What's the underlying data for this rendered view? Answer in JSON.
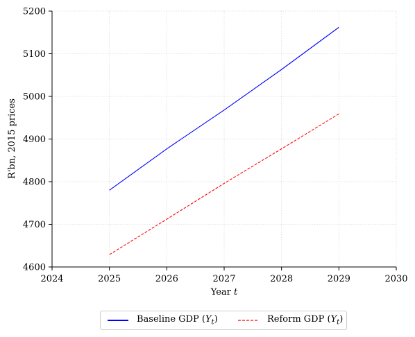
{
  "chart_data": {
    "type": "line",
    "xlabel_prefix": "Year ",
    "xlabel_var": "t",
    "ylabel": "R'bn, 2015 prices",
    "xlim": [
      2024,
      2030
    ],
    "ylim": [
      4600,
      5200
    ],
    "xticks": [
      2024,
      2025,
      2026,
      2027,
      2028,
      2029,
      2030
    ],
    "yticks": [
      4600,
      4700,
      4800,
      4900,
      5000,
      5100,
      5200
    ],
    "grid": true,
    "legend_position": "bottom-center",
    "series": [
      {
        "name_text": "Baseline GDP (",
        "name_var": "Y",
        "name_sub": "t",
        "name_close": ")",
        "color": "#0000ff",
        "style": "solid",
        "x": [
          2025,
          2026,
          2027,
          2028,
          2029
        ],
        "y": [
          4780,
          4877,
          4968,
          5063,
          5162
        ]
      },
      {
        "name_text": "Reform GDP (",
        "name_var": "Y",
        "name_sub": "t",
        "name_close": ")",
        "color": "#ff0000",
        "style": "dashed",
        "x": [
          2025,
          2026,
          2027,
          2028,
          2029
        ],
        "y": [
          4629,
          4712,
          4796,
          4877,
          4959
        ]
      }
    ]
  }
}
